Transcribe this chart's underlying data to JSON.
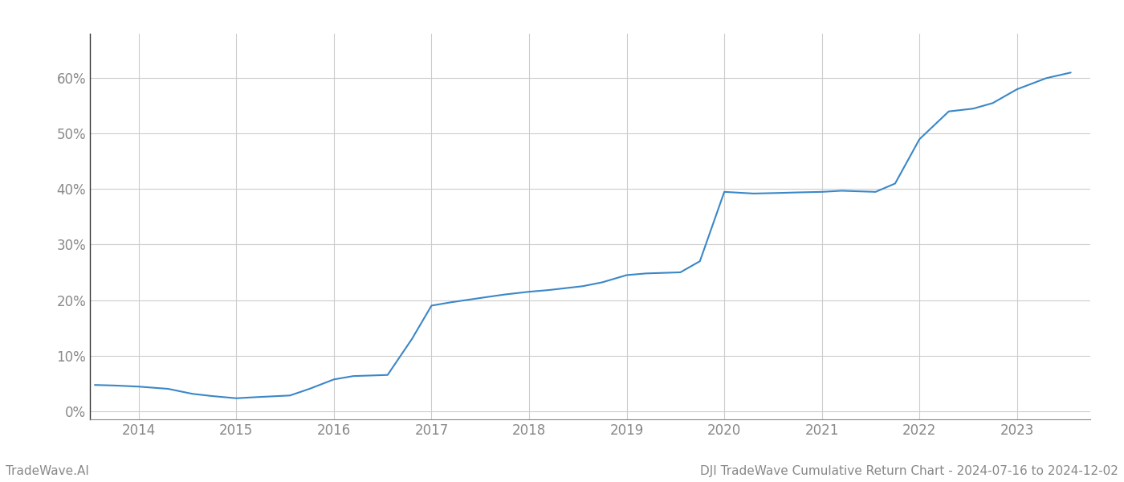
{
  "title": "DJI TradeWave Cumulative Return Chart - 2024-07-16 to 2024-12-02",
  "watermark": "TradeWave.AI",
  "line_color": "#3a87c8",
  "background_color": "#ffffff",
  "grid_color": "#cccccc",
  "x_years": [
    2014,
    2015,
    2016,
    2017,
    2018,
    2019,
    2020,
    2021,
    2022,
    2023
  ],
  "x_values": [
    2013.55,
    2013.75,
    2014.0,
    2014.3,
    2014.55,
    2014.75,
    2015.0,
    2015.2,
    2015.55,
    2015.75,
    2016.0,
    2016.2,
    2016.55,
    2016.8,
    2017.0,
    2017.2,
    2017.55,
    2017.75,
    2018.0,
    2018.2,
    2018.55,
    2018.75,
    2019.0,
    2019.2,
    2019.55,
    2019.75,
    2020.0,
    2020.3,
    2020.55,
    2020.75,
    2021.0,
    2021.2,
    2021.55,
    2021.75,
    2022.0,
    2022.3,
    2022.55,
    2022.75,
    2023.0,
    2023.3,
    2023.55
  ],
  "y_values": [
    0.047,
    0.046,
    0.044,
    0.04,
    0.031,
    0.027,
    0.023,
    0.025,
    0.028,
    0.04,
    0.057,
    0.063,
    0.065,
    0.13,
    0.19,
    0.196,
    0.205,
    0.21,
    0.215,
    0.218,
    0.225,
    0.232,
    0.245,
    0.248,
    0.25,
    0.27,
    0.395,
    0.392,
    0.393,
    0.394,
    0.395,
    0.397,
    0.395,
    0.41,
    0.49,
    0.54,
    0.545,
    0.555,
    0.58,
    0.6,
    0.61
  ],
  "ylim": [
    -0.015,
    0.68
  ],
  "yticks": [
    0.0,
    0.1,
    0.2,
    0.3,
    0.4,
    0.5,
    0.6
  ],
  "line_width": 1.5,
  "title_fontsize": 11,
  "watermark_fontsize": 11,
  "tick_fontsize": 12,
  "tick_color": "#888888",
  "left_spine_color": "#333333",
  "bottom_spine_color": "#888888"
}
